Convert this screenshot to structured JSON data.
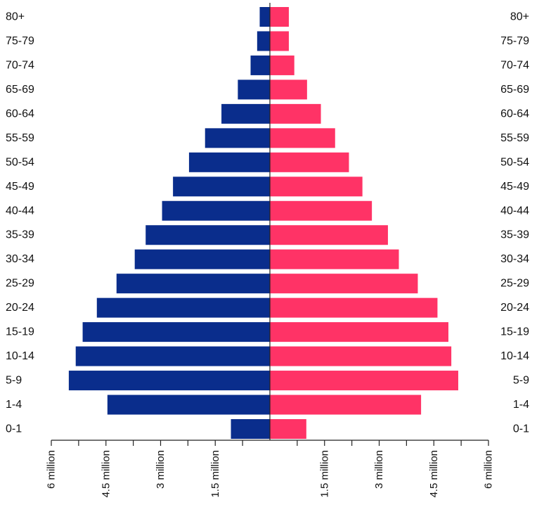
{
  "chart_data": {
    "type": "bar",
    "orientation": "horizontal",
    "layout": "population-pyramid",
    "categories": [
      "80+",
      "75-79",
      "70-74",
      "65-69",
      "60-64",
      "55-59",
      "50-54",
      "45-49",
      "40-44",
      "35-39",
      "30-34",
      "25-29",
      "20-24",
      "15-19",
      "10-14",
      "5-9",
      "1-4",
      "0-1"
    ],
    "series": [
      {
        "side": "left",
        "color": "#0a2d8c",
        "values": [
          0.28,
          0.35,
          0.53,
          0.88,
          1.33,
          1.78,
          2.22,
          2.66,
          2.96,
          3.41,
          3.71,
          4.21,
          4.75,
          5.14,
          5.33,
          5.52,
          4.46,
          1.07
        ]
      },
      {
        "side": "right",
        "color": "#ff3366",
        "values": [
          0.52,
          0.52,
          0.67,
          1.02,
          1.4,
          1.79,
          2.17,
          2.54,
          2.8,
          3.24,
          3.54,
          4.06,
          4.6,
          4.9,
          4.98,
          5.17,
          4.15,
          1.0
        ]
      }
    ],
    "xlim": [
      0,
      6
    ],
    "x_unit": "million",
    "ticks": {
      "left": [
        {
          "value": 6,
          "label": "6 million"
        },
        {
          "value": 4.5,
          "label": "4.5 million"
        },
        {
          "value": 3,
          "label": "3 million"
        },
        {
          "value": 1.5,
          "label": "1.5 million"
        }
      ],
      "right": [
        {
          "value": 1.5,
          "label": "1.5 million"
        },
        {
          "value": 3,
          "label": "3 million"
        },
        {
          "value": 4.5,
          "label": "4.5 million"
        },
        {
          "value": 6,
          "label": "6 million"
        }
      ],
      "minor_step": 0.75
    },
    "grid": false,
    "legend": "none",
    "title": "",
    "xlabel": "",
    "ylabel": ""
  }
}
